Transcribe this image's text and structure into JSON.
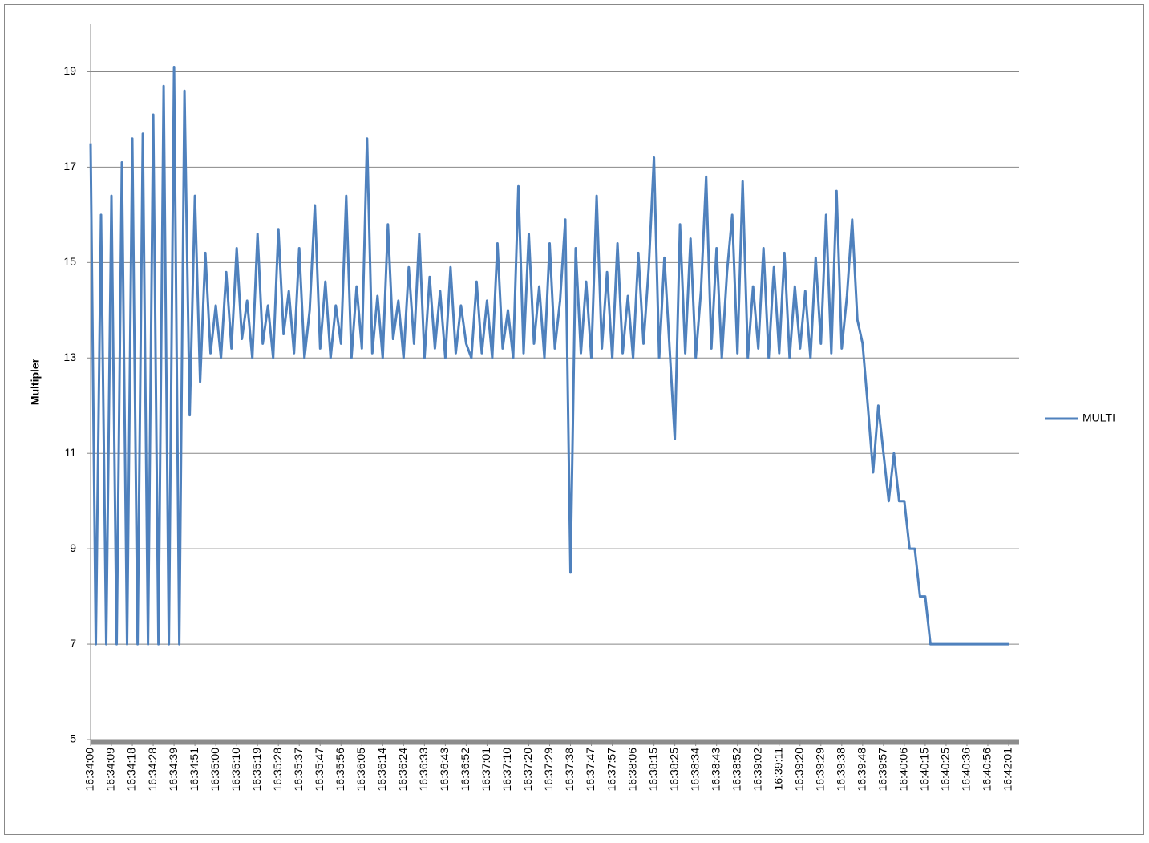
{
  "chart_data": {
    "type": "line",
    "y_label": "Multipler",
    "categories": [
      "16:34:00",
      null,
      null,
      null,
      "16:34:09",
      null,
      null,
      null,
      "16:34:18",
      null,
      null,
      null,
      "16:34:28",
      null,
      null,
      null,
      "16:34:39",
      null,
      null,
      null,
      "16:34:51",
      null,
      null,
      null,
      "16:35:00",
      null,
      null,
      null,
      "16:35:10",
      null,
      null,
      null,
      "16:35:19",
      null,
      null,
      null,
      "16:35:28",
      null,
      null,
      null,
      "16:35:37",
      null,
      null,
      null,
      "16:35:47",
      null,
      null,
      null,
      "16:35:56",
      null,
      null,
      null,
      "16:36:05",
      null,
      null,
      null,
      "16:36:14",
      null,
      null,
      null,
      "16:36:24",
      null,
      null,
      null,
      "16:36:33",
      null,
      null,
      null,
      "16:36:43",
      null,
      null,
      null,
      "16:36:52",
      null,
      null,
      null,
      "16:37:01",
      null,
      null,
      null,
      "16:37:10",
      null,
      null,
      null,
      "16:37:20",
      null,
      null,
      null,
      "16:37:29",
      null,
      null,
      null,
      "16:37:38",
      null,
      null,
      null,
      "16:37:47",
      null,
      null,
      null,
      "16:37:57",
      null,
      null,
      null,
      "16:38:06",
      null,
      null,
      null,
      "16:38:15",
      null,
      null,
      null,
      "16:38:25",
      null,
      null,
      null,
      "16:38:34",
      null,
      null,
      null,
      "16:38:43",
      null,
      null,
      null,
      "16:38:52",
      null,
      null,
      null,
      "16:39:02",
      null,
      null,
      null,
      "16:39:11",
      null,
      null,
      null,
      "16:39:20",
      null,
      null,
      null,
      "16:39:29",
      null,
      null,
      null,
      "16:39:38",
      null,
      null,
      null,
      "16:39:48",
      null,
      null,
      null,
      "16:39:57",
      null,
      null,
      null,
      "16:40:06",
      null,
      null,
      null,
      "16:40:15",
      null,
      null,
      null,
      "16:40:25",
      null,
      null,
      null,
      "16:40:36",
      null,
      null,
      null,
      "16:40:56",
      null,
      null,
      null,
      "16:42:01"
    ],
    "series": [
      {
        "name": "MULTI",
        "color": "#4f81bd",
        "values": [
          17.5,
          7,
          16,
          7,
          16.4,
          7,
          17.1,
          7,
          17.6,
          7,
          17.7,
          7,
          18.1,
          7,
          18.7,
          7,
          19.1,
          7,
          18.6,
          11.8,
          16.4,
          12.5,
          15.2,
          13.1,
          14.1,
          13.0,
          14.8,
          13.2,
          15.3,
          13.4,
          14.2,
          13.0,
          15.6,
          13.3,
          14.1,
          13.0,
          15.7,
          13.5,
          14.4,
          13.1,
          15.3,
          13.0,
          14.0,
          16.2,
          13.2,
          14.6,
          13.0,
          14.1,
          13.3,
          16.4,
          13.0,
          14.5,
          13.2,
          17.6,
          13.1,
          14.3,
          13.0,
          15.8,
          13.4,
          14.2,
          13.0,
          14.9,
          13.3,
          15.6,
          13.0,
          14.7,
          13.2,
          14.4,
          13.0,
          14.9,
          13.1,
          14.1,
          13.3,
          13.0,
          14.6,
          13.1,
          14.2,
          13.0,
          15.4,
          13.2,
          14.0,
          13.0,
          16.6,
          13.1,
          15.6,
          13.3,
          14.5,
          13.0,
          15.4,
          13.2,
          14.2,
          15.9,
          8.5,
          15.3,
          13.1,
          14.6,
          13.0,
          16.4,
          13.2,
          14.8,
          13.0,
          15.4,
          13.1,
          14.3,
          13.0,
          15.2,
          13.3,
          14.9,
          17.2,
          13.0,
          15.1,
          13.2,
          11.3,
          15.8,
          13.1,
          15.5,
          13.0,
          14.4,
          16.8,
          13.2,
          15.3,
          13.0,
          14.8,
          16.0,
          13.1,
          16.7,
          13.0,
          14.5,
          13.2,
          15.3,
          13.0,
          14.9,
          13.1,
          15.2,
          13.0,
          14.5,
          13.2,
          14.4,
          13.0,
          15.1,
          13.3,
          16.0,
          13.1,
          16.5,
          13.2,
          14.3,
          15.9,
          13.8,
          13.3,
          12,
          10.6,
          12,
          11,
          10,
          11,
          10,
          10,
          9,
          9,
          8,
          8,
          7,
          7,
          7,
          7,
          7,
          7,
          7,
          7,
          7,
          7,
          7,
          7,
          7,
          7,
          7,
          7
        ]
      }
    ],
    "ylim": [
      5,
      20
    ],
    "yticks": [
      5,
      7,
      9,
      11,
      13,
      15,
      17,
      19
    ],
    "grid": true,
    "legend": "right"
  }
}
